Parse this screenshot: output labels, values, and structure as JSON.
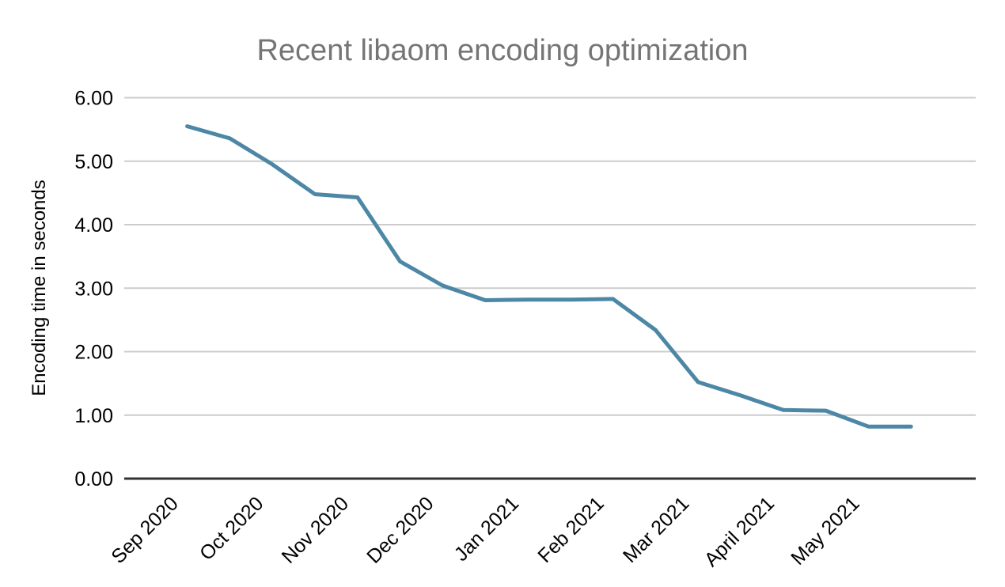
{
  "page": {
    "background_color": "#ffffff"
  },
  "chart_data": {
    "type": "line",
    "title": "Recent libaom encoding optimization",
    "title_color": "#757575",
    "xlabel": "",
    "ylabel": "Encoding time in seconds",
    "ylim": [
      0,
      6
    ],
    "y_tick_labels": [
      "0.00",
      "1.00",
      "2.00",
      "3.00",
      "4.00",
      "5.00",
      "6.00"
    ],
    "x_tick_labels": [
      "Sep 2020",
      "Oct 2020",
      "Nov 2020",
      "Dec 2020",
      "Jan 2021",
      "Feb 2021",
      "Mar 2021",
      "April 2021",
      "May 2021"
    ],
    "x_tick_month_positions": [
      0,
      1,
      2,
      3,
      4,
      5,
      6,
      7,
      8
    ],
    "grid": "horizontal",
    "legend": "none",
    "gridline_color": "#cccccc",
    "axis_line_color": "#333333",
    "tick_text_color": "#000000",
    "series": [
      {
        "color": "#4d87a6",
        "x_unit": "months_after_Sep_2020",
        "x": [
          0,
          0.5,
          1,
          1.5,
          2,
          2.5,
          3,
          3.5,
          4,
          4.5,
          5,
          5.5,
          6,
          6.5,
          7,
          7.5,
          8,
          8.5
        ],
        "values": [
          5.55,
          5.36,
          4.95,
          4.48,
          4.43,
          3.42,
          3.04,
          2.81,
          2.82,
          2.82,
          2.83,
          2.34,
          1.52,
          1.31,
          1.08,
          1.07,
          0.82,
          0.82
        ]
      }
    ]
  }
}
